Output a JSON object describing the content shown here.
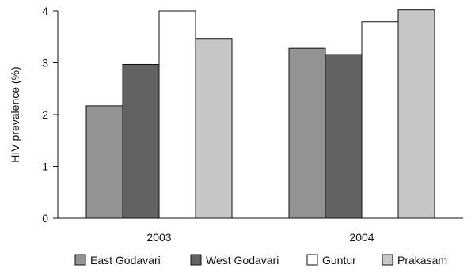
{
  "chart_data": {
    "type": "bar",
    "title": "",
    "xlabel": "",
    "ylabel": "HIV prevalence (%)",
    "categories": [
      "2003",
      "2004"
    ],
    "ylim": [
      0,
      4
    ],
    "yticks": [
      0,
      1,
      2,
      3,
      4
    ],
    "grid": false,
    "legend_position": "bottom",
    "series": [
      {
        "name": "East Godavari",
        "color": "#939393",
        "values": [
          2.17,
          3.28
        ]
      },
      {
        "name": "West Godavari",
        "color": "#626262",
        "values": [
          2.97,
          3.16
        ]
      },
      {
        "name": "Guntur",
        "color": "#ffffff",
        "values": [
          4.0,
          3.79
        ]
      },
      {
        "name": "Prakasam",
        "color": "#c6c6c6",
        "values": [
          3.47,
          4.02
        ]
      }
    ]
  }
}
